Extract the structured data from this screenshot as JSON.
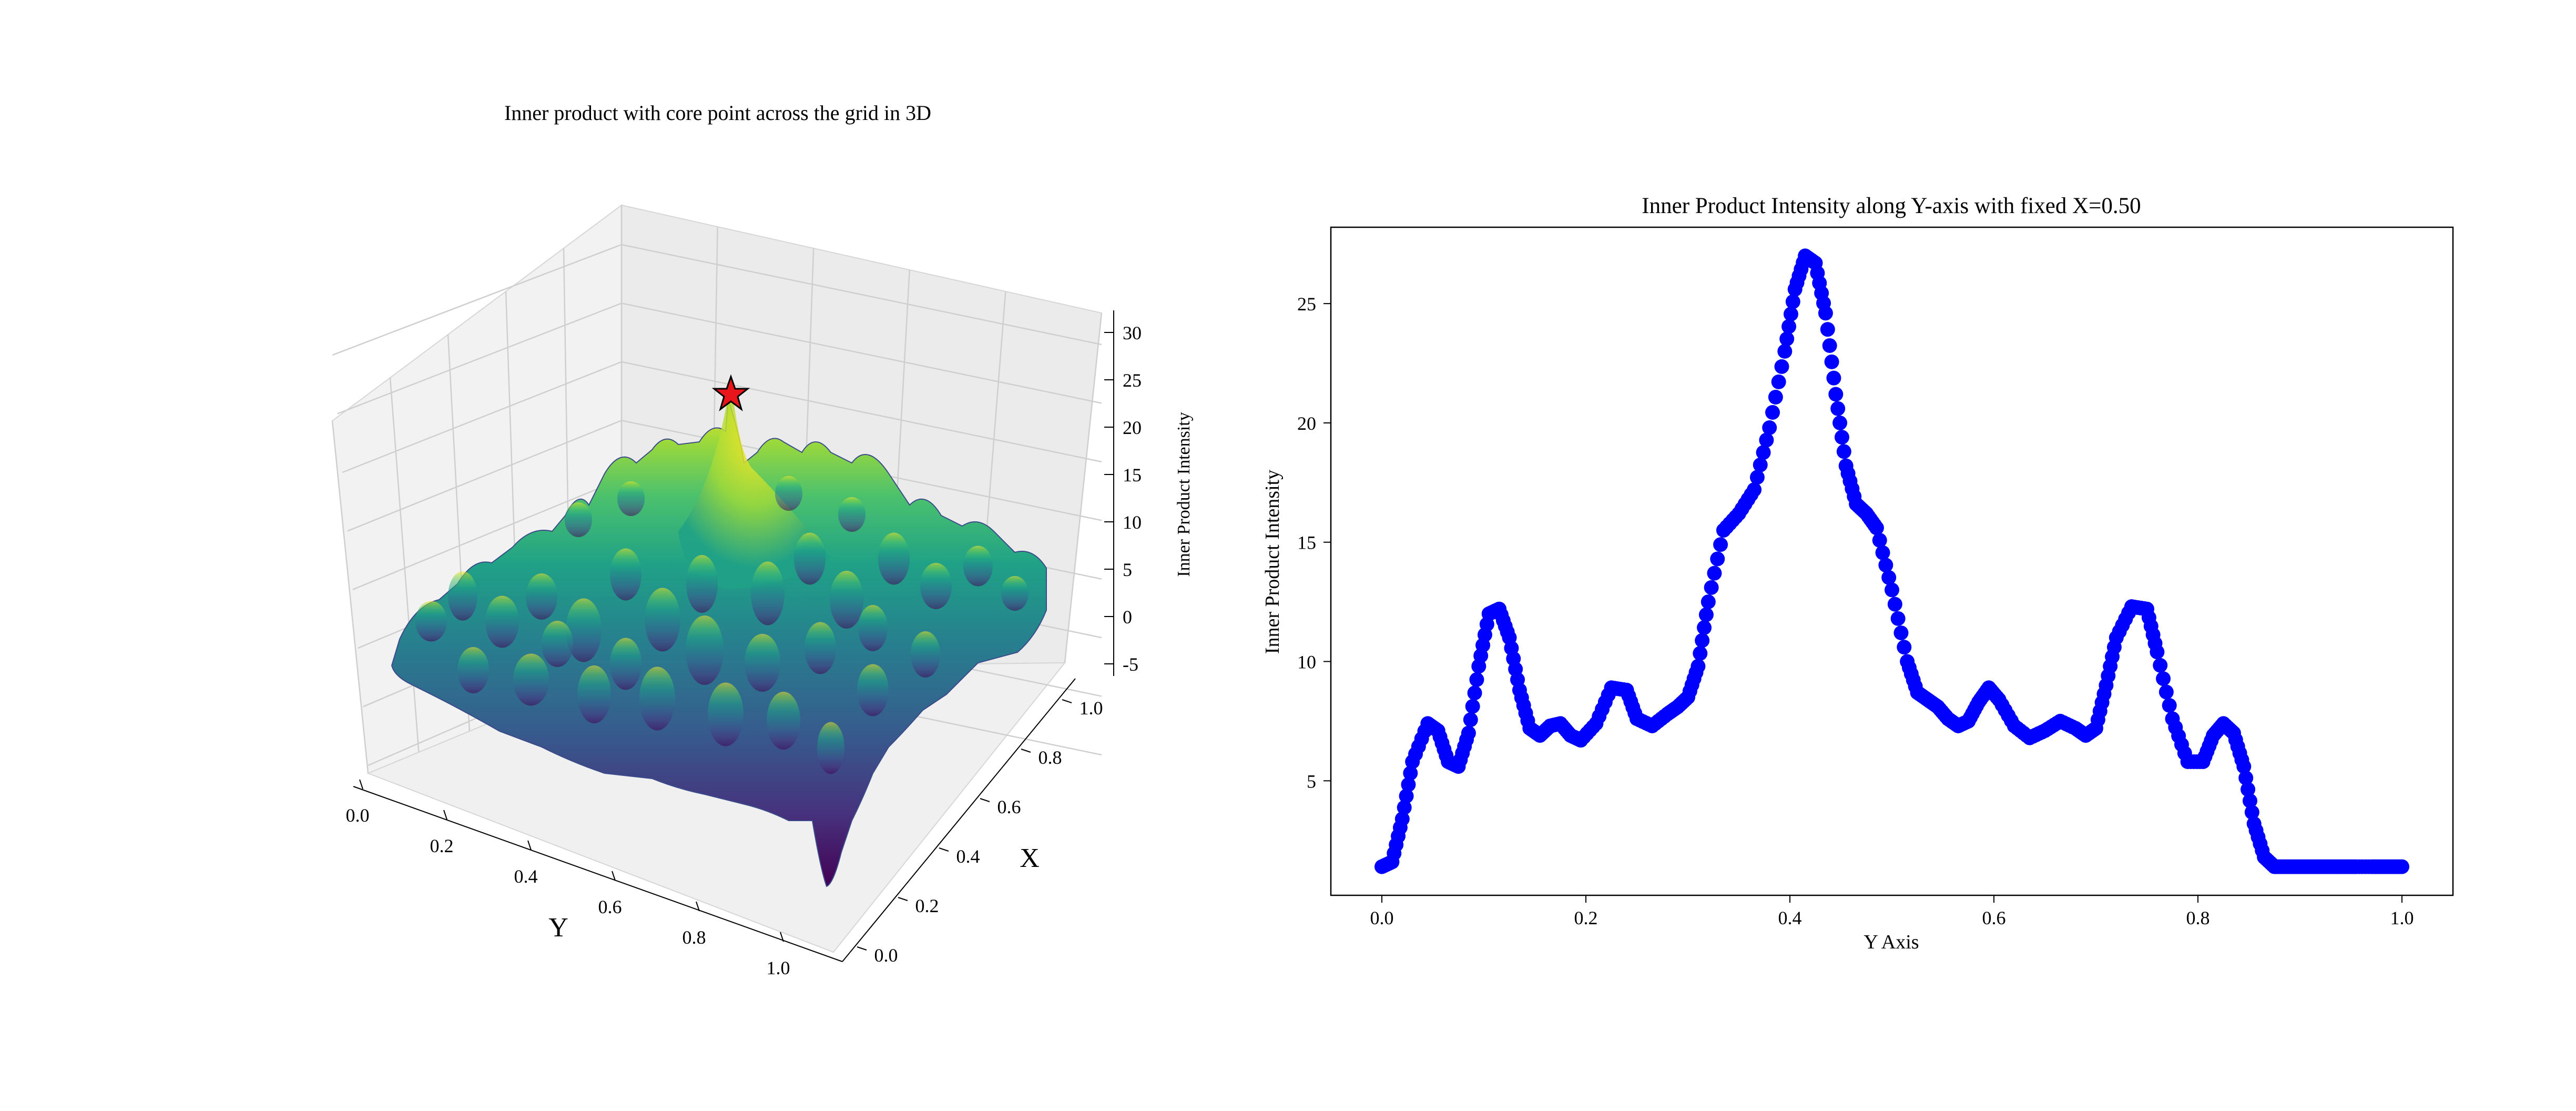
{
  "chart_data": [
    {
      "type": "surface3d",
      "title": "Inner product with core point across the grid in 3D",
      "xlabel": "Y",
      "ylabel": "X",
      "zlabel": "Inner Product Intensity",
      "y_ticks": [
        "0.0",
        "0.2",
        "0.4",
        "0.6",
        "0.8",
        "1.0"
      ],
      "x_ticks": [
        "0.0",
        "0.2",
        "0.4",
        "0.6",
        "0.8",
        "1.0"
      ],
      "z_ticks": [
        "-5",
        "0",
        "5",
        "10",
        "15",
        "20",
        "25",
        "30"
      ],
      "xlim": [
        0,
        1
      ],
      "ylim": [
        0,
        1
      ],
      "zlim": [
        -7,
        31
      ],
      "colormap": "viridis",
      "grid": true,
      "marker": {
        "shape": "star",
        "color": "#e8161a",
        "x": 0.5,
        "y": 0.5,
        "z": 27
      }
    },
    {
      "type": "scatter",
      "title": "Inner Product Intensity along Y-axis with fixed X=0.50",
      "xlabel": "Y Axis",
      "ylabel": "Inner Product Intensity",
      "x_ticks": [
        "0.0",
        "0.2",
        "0.4",
        "0.6",
        "0.8",
        "1.0"
      ],
      "y_ticks": [
        "5",
        "10",
        "15",
        "20",
        "25"
      ],
      "xlim": [
        -0.05,
        1.05
      ],
      "ylim": [
        0.2,
        28.2
      ],
      "color": "#0000ff",
      "series": [
        {
          "x": [
            0.0,
            0.01,
            0.02,
            0.03,
            0.045,
            0.055,
            0.065,
            0.075,
            0.085,
            0.095,
            0.105,
            0.115,
            0.125,
            0.135,
            0.145,
            0.155,
            0.165,
            0.175,
            0.185,
            0.195,
            0.21,
            0.225,
            0.24,
            0.25,
            0.265,
            0.28,
            0.29,
            0.3,
            0.31,
            0.32,
            0.335,
            0.35,
            0.365,
            0.38,
            0.395,
            0.405,
            0.415,
            0.425,
            0.435,
            0.445,
            0.455,
            0.465,
            0.475,
            0.485,
            0.5,
            0.515,
            0.525,
            0.535,
            0.545,
            0.555,
            0.565,
            0.575,
            0.585,
            0.595,
            0.605,
            0.62,
            0.635,
            0.65,
            0.665,
            0.68,
            0.69,
            0.7,
            0.71,
            0.72,
            0.735,
            0.75,
            0.76,
            0.775,
            0.79,
            0.805,
            0.815,
            0.825,
            0.835,
            0.845,
            0.855,
            0.865,
            0.875,
            0.885,
            0.895,
            0.905,
            0.915,
            0.925,
            0.935,
            0.945,
            0.955,
            0.97,
            0.98,
            0.99,
            1.0
          ],
          "y": [
            1.4,
            1.6,
            3.4,
            5.8,
            7.4,
            7.1,
            5.8,
            5.6,
            7.0,
            9.8,
            12.0,
            12.2,
            11.0,
            8.8,
            7.2,
            6.9,
            7.3,
            7.4,
            6.9,
            6.7,
            7.4,
            8.9,
            8.8,
            7.6,
            7.3,
            7.8,
            8.1,
            8.5,
            9.8,
            12.5,
            15.5,
            16.2,
            17.2,
            19.8,
            23.0,
            25.6,
            27.0,
            26.7,
            24.6,
            21.2,
            18.2,
            16.6,
            16.2,
            15.6,
            13.0,
            10.0,
            8.7,
            8.4,
            8.1,
            7.6,
            7.3,
            7.5,
            8.3,
            8.9,
            8.4,
            7.3,
            6.8,
            7.1,
            7.5,
            7.2,
            6.9,
            7.2,
            9.0,
            11.0,
            12.3,
            12.2,
            10.4,
            7.6,
            5.8,
            5.8,
            6.9,
            7.4,
            7.0,
            5.6,
            3.2,
            1.8,
            1.4,
            1.4,
            1.4,
            1.4,
            1.4,
            1.4,
            1.4,
            1.4,
            1.4,
            1.4,
            1.4,
            1.4,
            1.4
          ]
        }
      ]
    }
  ]
}
